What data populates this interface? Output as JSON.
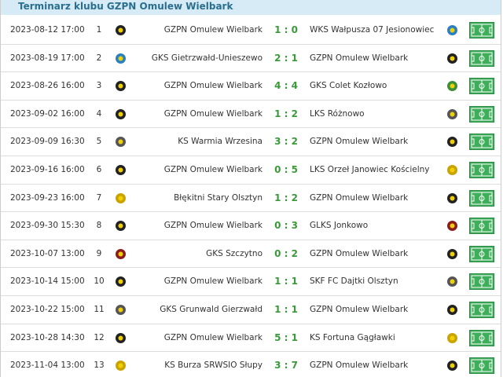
{
  "header": {
    "title": "Terminarz klubu GZPN Omulew Wielbark"
  },
  "table": {
    "rows": [
      [
        "2023-08-12 17:00",
        "1",
        "GZPN Omulew Wielbark",
        "1 : 0",
        "WKS Wałpusza 07 Jesionowiec"
      ],
      [
        "2023-08-19 17:00",
        "2",
        "GKS Gietrzwałd-Unieszewo",
        "2 : 1",
        "GZPN Omulew Wielbark"
      ],
      [
        "2023-08-26 16:00",
        "3",
        "GZPN Omulew Wielbark",
        "4 : 4",
        "GKS Colet Kozłowo"
      ],
      [
        "2023-09-02 16:00",
        "4",
        "GZPN Omulew Wielbark",
        "1 : 2",
        "LKS Różnowo"
      ],
      [
        "2023-09-09 16:30",
        "5",
        "KS Warmia Wrzesina",
        "3 : 2",
        "GZPN Omulew Wielbark"
      ],
      [
        "2023-09-16 16:00",
        "6",
        "GZPN Omulew Wielbark",
        "0 : 5",
        "LKS Orzeł Janowiec Kościelny"
      ],
      [
        "2023-09-23 16:00",
        "7",
        "Błękitni Stary Olsztyn",
        "1 : 2",
        "GZPN Omulew Wielbark"
      ],
      [
        "2023-09-30 15:30",
        "8",
        "GZPN Omulew Wielbark",
        "0 : 3",
        "GLKS Jonkowo"
      ],
      [
        "2023-10-07 13:00",
        "9",
        "GKS Szczytno",
        "0 : 2",
        "GZPN Omulew Wielbark"
      ],
      [
        "2023-10-14 15:00",
        "10",
        "GZPN Omulew Wielbark",
        "1 : 1",
        "SKF FC Dajtki Olsztyn"
      ],
      [
        "2023-10-22 15:00",
        "11",
        "GKS Grunwald Gierzwałd",
        "1 : 1",
        "GZPN Omulew Wielbark"
      ],
      [
        "2023-10-28 14:30",
        "12",
        "GZPN Omulew Wielbark",
        "5 : 1",
        "KS Fortuna Gągławki"
      ],
      [
        "2023-11-04 13:00",
        "13",
        "KS Burza SRWSIO Słupy",
        "3 : 7",
        "GZPN Omulew Wielbark"
      ]
    ]
  }
}
